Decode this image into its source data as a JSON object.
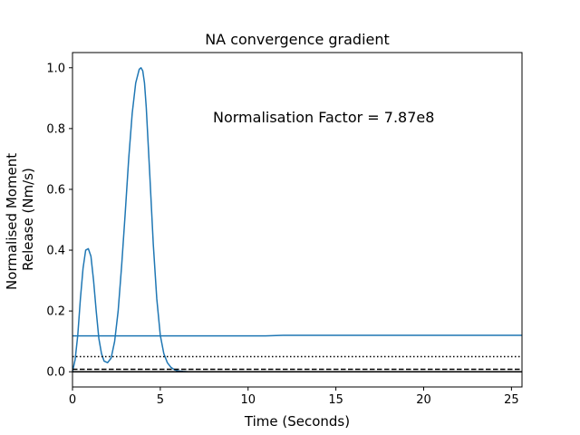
{
  "chart_data": {
    "type": "line",
    "title": "NA convergence gradient",
    "xlabel": "Time (Seconds)",
    "ylabel_lines": [
      "Normalised Moment",
      "Release (Nm/s)"
    ],
    "xlim": [
      0,
      25.6
    ],
    "ylim": [
      -0.05,
      1.05
    ],
    "xticks": [
      0,
      5,
      10,
      15,
      20,
      25
    ],
    "xtick_labels": [
      "0",
      "5",
      "10",
      "15",
      "20",
      "25"
    ],
    "yticks": [
      0.0,
      0.2,
      0.4,
      0.6,
      0.8,
      1.0
    ],
    "ytick_labels": [
      "0.0",
      "0.2",
      "0.4",
      "0.6",
      "0.8",
      "1.0"
    ],
    "grid": false,
    "annotation": {
      "text": "Normalisation Factor = 7.87e8",
      "x": 8.0,
      "y": 0.82
    },
    "series": [
      {
        "color": "#1f77b4",
        "style": "solid",
        "x": [
          0.0,
          0.15,
          0.3,
          0.45,
          0.6,
          0.75,
          0.9,
          1.05,
          1.2,
          1.35,
          1.5,
          1.65,
          1.8,
          2.0,
          2.2,
          2.4,
          2.6,
          2.8,
          3.0,
          3.2,
          3.4,
          3.6,
          3.8,
          3.9,
          4.0,
          4.1,
          4.2,
          4.4,
          4.6,
          4.8,
          5.0,
          5.2,
          5.4,
          5.6,
          5.8,
          6.0,
          6.3,
          6.6,
          7.0,
          8.0,
          10.0,
          12.0,
          15.0,
          20.0,
          25.6
        ],
        "y": [
          0.0,
          0.04,
          0.12,
          0.24,
          0.34,
          0.4,
          0.405,
          0.38,
          0.3,
          0.2,
          0.11,
          0.06,
          0.035,
          0.03,
          0.045,
          0.1,
          0.2,
          0.35,
          0.52,
          0.7,
          0.85,
          0.95,
          0.995,
          1.0,
          0.99,
          0.95,
          0.87,
          0.65,
          0.42,
          0.24,
          0.12,
          0.06,
          0.03,
          0.015,
          0.007,
          0.003,
          0.001,
          0.0,
          0.0,
          0.0,
          0.0,
          0.0,
          0.0,
          0.0,
          0.0
        ]
      },
      {
        "color": "#1f77b4",
        "style": "solid",
        "x": [
          0.0,
          5.0,
          10.0,
          11.0,
          12.0,
          15.0,
          20.0,
          25.6
        ],
        "y": [
          0.118,
          0.118,
          0.118,
          0.118,
          0.12,
          0.12,
          0.12,
          0.12
        ]
      },
      {
        "color": "#000000",
        "style": "dotted",
        "x": [
          0.0,
          25.6
        ],
        "y": [
          0.05,
          0.05
        ]
      },
      {
        "color": "#000000",
        "style": "dashed",
        "x": [
          0.0,
          25.6
        ],
        "y": [
          0.008,
          0.008
        ]
      },
      {
        "color": "#000000",
        "style": "solid",
        "x": [
          0.0,
          25.6
        ],
        "y": [
          0.0,
          0.0
        ]
      }
    ]
  }
}
